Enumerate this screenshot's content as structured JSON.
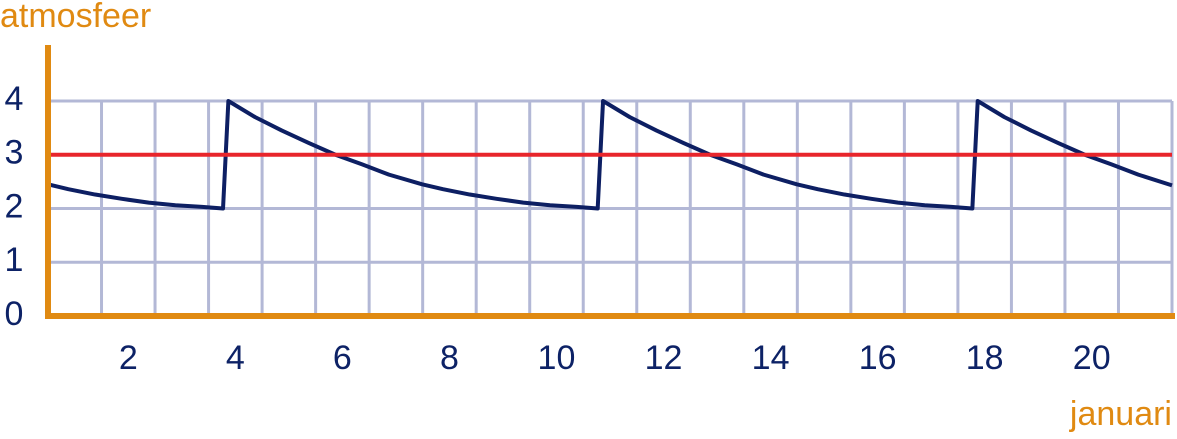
{
  "chart_data": {
    "type": "line",
    "y_label": "atmosfeer",
    "x_label": "januari",
    "xlim": [
      0,
      21
    ],
    "ylim": [
      0,
      5
    ],
    "xticks": [
      {
        "value": 1.5,
        "label": "2"
      },
      {
        "value": 3.5,
        "label": "4"
      },
      {
        "value": 5.5,
        "label": "6"
      },
      {
        "value": 7.5,
        "label": "8"
      },
      {
        "value": 9.5,
        "label": "10"
      },
      {
        "value": 11.5,
        "label": "12"
      },
      {
        "value": 13.5,
        "label": "14"
      },
      {
        "value": 15.5,
        "label": "16"
      },
      {
        "value": 17.5,
        "label": "18"
      },
      {
        "value": 19.5,
        "label": "20"
      }
    ],
    "yticks": [
      0,
      1,
      2,
      3,
      4
    ],
    "grid": true,
    "axis_color": "#e08a12",
    "grid_color": "#b3b8d6",
    "label_color": "#0d2266",
    "series": [
      {
        "color": "#0d1f63",
        "x": [
          0,
          0.38,
          0.88,
          1.38,
          1.88,
          2.38,
          2.88,
          3.27,
          3.37,
          3.87,
          4.37,
          4.87,
          5.37,
          5.87,
          6.37,
          6.99,
          7.38,
          7.88,
          8.38,
          8.88,
          9.38,
          9.88,
          10.27,
          10.37,
          10.87,
          11.37,
          11.87,
          12.37,
          12.87,
          13.37,
          13.99,
          14.38,
          14.88,
          15.38,
          15.88,
          16.38,
          16.88,
          17.27,
          17.37,
          17.87,
          18.37,
          18.87,
          19.37,
          19.87,
          20.37,
          21
        ],
        "values": [
          2.45,
          2.36,
          2.26,
          2.18,
          2.11,
          2.06,
          2.03,
          2.0,
          4,
          3.7,
          3.45,
          3.22,
          3.0,
          2.82,
          2.63,
          2.45,
          2.36,
          2.26,
          2.18,
          2.11,
          2.06,
          2.03,
          2.0,
          4,
          3.7,
          3.45,
          3.22,
          3.0,
          2.82,
          2.63,
          2.45,
          2.36,
          2.26,
          2.18,
          2.11,
          2.06,
          2.03,
          2.0,
          4,
          3.7,
          3.45,
          3.22,
          3.0,
          2.82,
          2.63,
          2.43
        ]
      },
      {
        "color": "#e8252b",
        "x": [
          0,
          21
        ],
        "values": [
          3,
          3
        ]
      }
    ]
  }
}
